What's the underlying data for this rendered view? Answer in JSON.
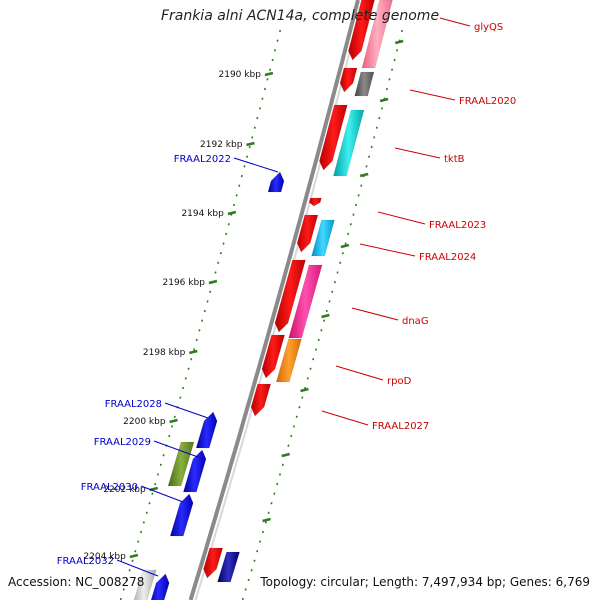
{
  "figure": {
    "title": "Frankia alni ACN14a, complete genome",
    "accession": "Accession: NC_008278",
    "topology": "Topology: circular; Length: 7,497,934 bp; Genes: 6,769"
  },
  "ticks": [
    "2190 kbp",
    "2192 kbp",
    "2194 kbp",
    "2196 kbp",
    "2198 kbp",
    "2200 kbp",
    "2202 kbp",
    "2204 kbp"
  ],
  "genes_right": [
    {
      "name": "glyQS",
      "color": "#cc0000"
    },
    {
      "name": "FRAAL2020",
      "color": "#cc0000"
    },
    {
      "name": "tktB",
      "color": "#cc0000"
    },
    {
      "name": "FRAAL2023",
      "color": "#cc0000"
    },
    {
      "name": "FRAAL2024",
      "color": "#cc0000"
    },
    {
      "name": "dnaG",
      "color": "#cc0000"
    },
    {
      "name": "rpoD",
      "color": "#cc0000"
    },
    {
      "name": "FRAAL2027",
      "color": "#cc0000"
    }
  ],
  "genes_left": [
    {
      "name": "FRAAL2022",
      "color": "#0000cc"
    },
    {
      "name": "FRAAL2028",
      "color": "#0000cc"
    },
    {
      "name": "FRAAL2029",
      "color": "#0000cc"
    },
    {
      "name": "FRAAL2030",
      "color": "#0000cc"
    },
    {
      "name": "FRAAL2032",
      "color": "#0000cc"
    }
  ],
  "colors": {
    "forward_strand": "#ff0000",
    "reverse_strand": "#0000ff",
    "backbone": "#999999",
    "tick": "#2e7d1e",
    "cog_pink": "#ff80a0",
    "cog_gray": "#666666",
    "cog_cyan": "#00c8c8",
    "cog_lightblue": "#00b8ee",
    "cog_magenta": "#ff2090",
    "cog_orange": "#ff8c00",
    "cog_olive": "#6b8e23",
    "cog_navy": "#000080",
    "cog_silver": "#c0c0c0"
  }
}
